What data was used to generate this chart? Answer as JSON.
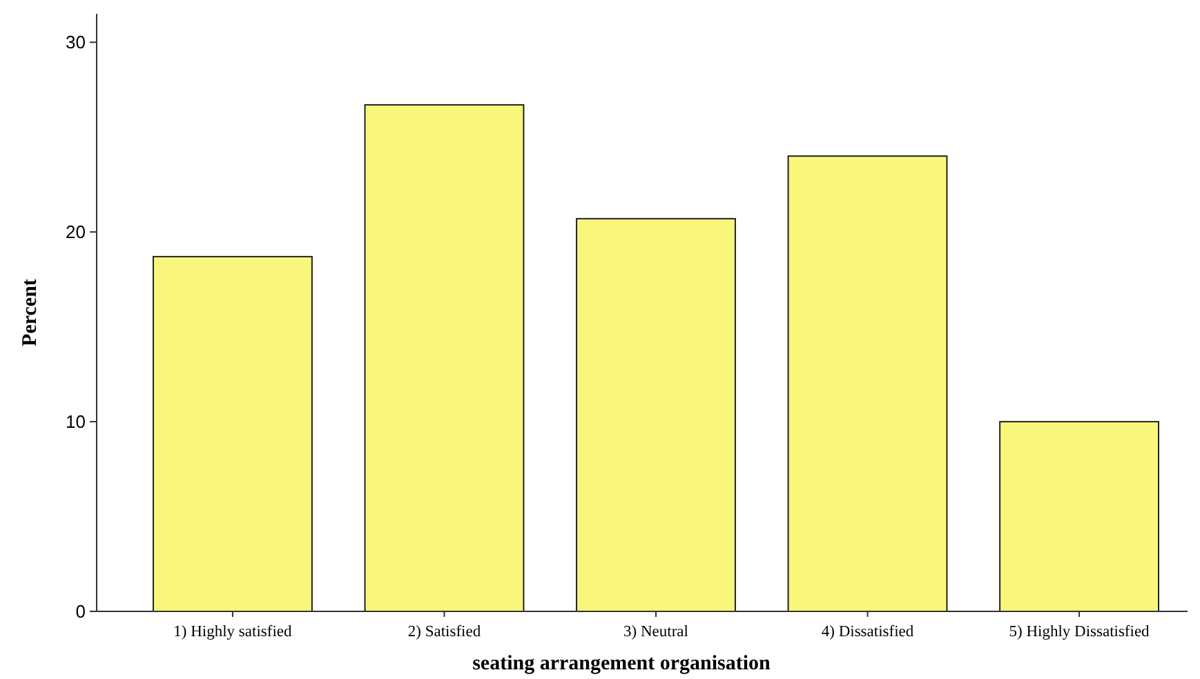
{
  "chart_data": {
    "type": "bar",
    "xlabel": "seating arrangement organisation",
    "ylabel": "Percent",
    "categories": [
      "1) Highly satisfied",
      "2) Satisfied",
      "3) Neutral",
      "4) Dissatisfied",
      "5) Highly Dissatisfied"
    ],
    "values": [
      18.7,
      26.7,
      20.7,
      24.0,
      10.0
    ],
    "color": "#f8f77c",
    "ylim": [
      0,
      31.5
    ],
    "yticks": [
      0,
      10,
      20,
      30
    ],
    "grid": false
  }
}
